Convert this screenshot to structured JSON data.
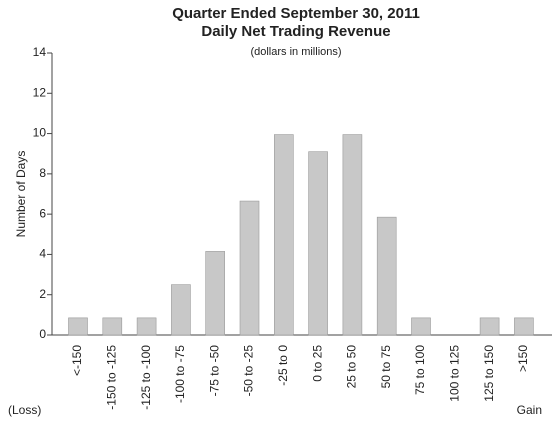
{
  "chart_data": {
    "type": "bar",
    "title": "Quarter Ended September 30, 2011",
    "subtitle": "Daily Net Trading Revenue",
    "note": "(dollars in millions)",
    "y_label": "Number of Days",
    "annotations": [
      "(Loss)",
      "Gain"
    ],
    "categories": [
      "<-150",
      "-150 to -125",
      "-125 to -100",
      "-100 to -75",
      "-75 to -50",
      "-50 to -25",
      "-25 to 0",
      "0 to 25",
      "25 to 50",
      "50 to 75",
      "75 to 100",
      "100 to 125",
      "125 to 150",
      ">150"
    ],
    "values": [
      0.85,
      0.85,
      0.85,
      2.5,
      4.15,
      6.65,
      9.95,
      9.1,
      9.95,
      5.85,
      0.85,
      0,
      0.85,
      0.85
    ],
    "color": "#c8c8c8",
    "ylim": [
      0,
      14
    ],
    "yticks": [
      0,
      2,
      4,
      6,
      8,
      10,
      12,
      14
    ],
    "grid": false
  }
}
